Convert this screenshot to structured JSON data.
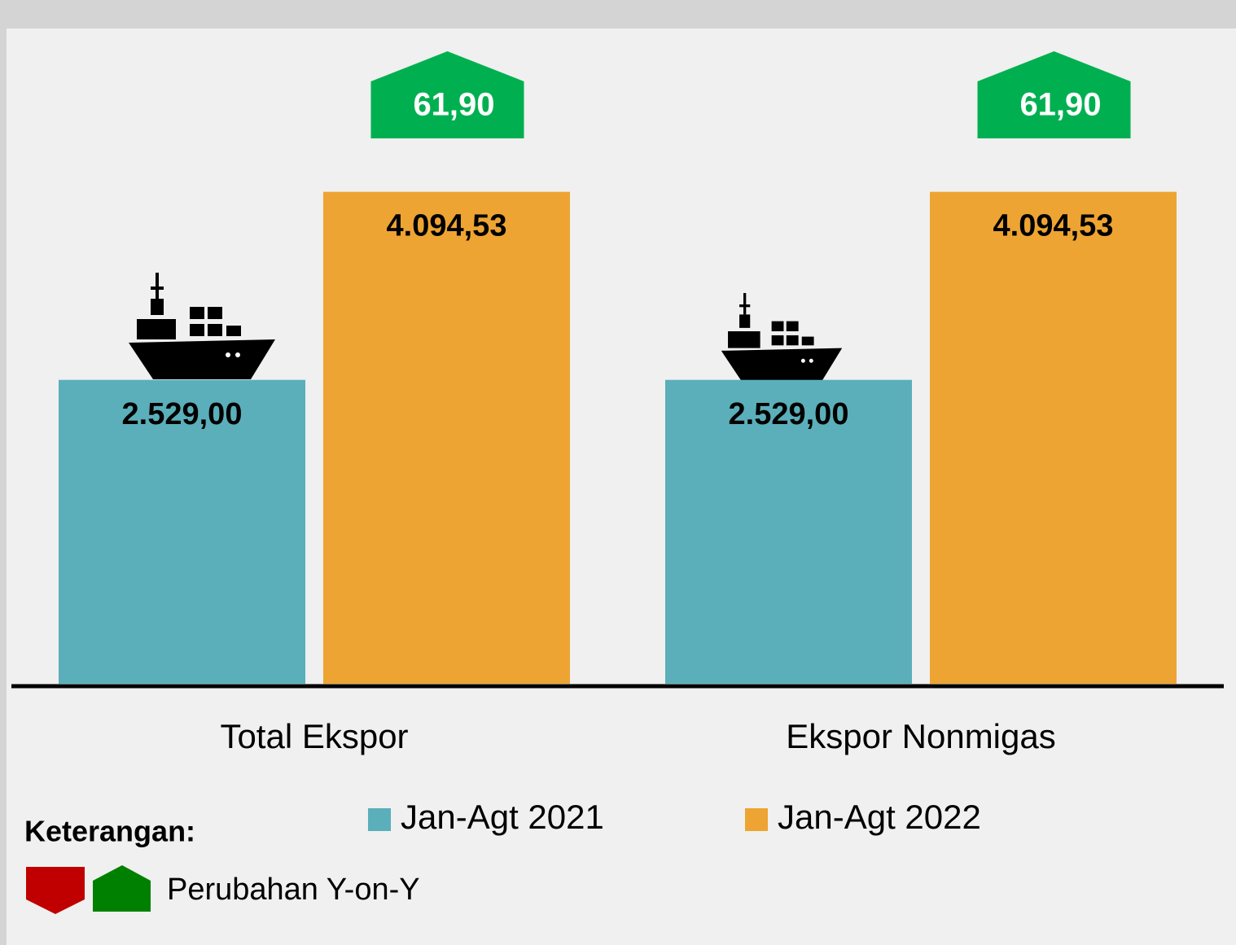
{
  "chart_data": {
    "type": "bar",
    "categories": [
      "Total Ekspor",
      "Ekspor Nonmigas"
    ],
    "series": [
      {
        "name": "Jan-Agt 2021",
        "color": "#5aafba",
        "values": [
          2529.0,
          2529.0
        ],
        "value_labels": [
          "2.529,00",
          "2.529,00"
        ]
      },
      {
        "name": "Jan-Agt 2022",
        "color": "#eea432",
        "values": [
          4094.53,
          4094.53
        ],
        "value_labels": [
          "4.094,53",
          "4.094,53"
        ]
      }
    ],
    "yoy_change": {
      "color": "#00b050",
      "values": [
        61.9,
        61.9
      ],
      "value_labels": [
        "61,90",
        "61,90"
      ]
    },
    "ylim": [
      0,
      5000
    ],
    "legend_title": "Keterangan:",
    "legend_note": "Perubahan Y-on-Y"
  }
}
